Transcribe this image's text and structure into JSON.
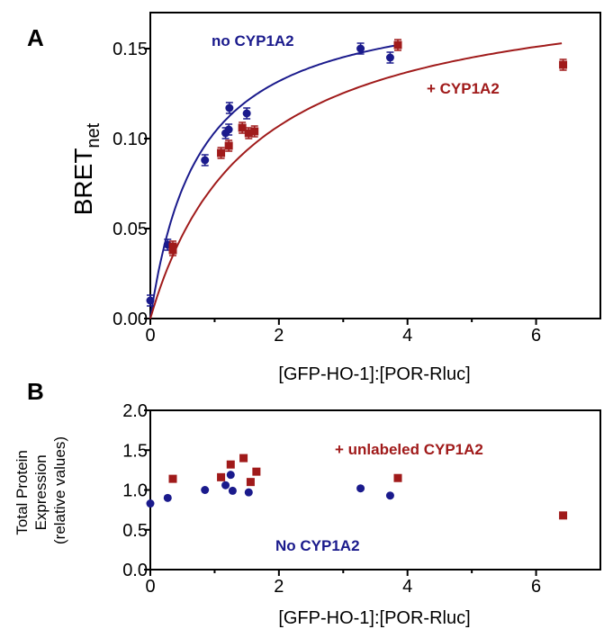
{
  "chart_data": [
    {
      "panel": "A",
      "type": "scatter",
      "xlabel": "[GFP-HO-1]:[POR-Rluc]",
      "ylabel": "BRET",
      "ylabel_sub": "net",
      "xlim": [
        0,
        7
      ],
      "ylim": [
        0,
        0.17
      ],
      "xticks": [
        0,
        2,
        4,
        6
      ],
      "yticks": [
        0.0,
        0.05,
        0.1,
        0.15
      ],
      "ytick_labels": [
        "0.00",
        "0.05",
        "0.10",
        "0.15"
      ],
      "series": [
        {
          "name": "no CYP1A2",
          "color": "#1a1a8c",
          "marker": "circle",
          "points": [
            {
              "x": 0.0,
              "y": 0.01
            },
            {
              "x": 0.27,
              "y": 0.041
            },
            {
              "x": 0.85,
              "y": 0.088
            },
            {
              "x": 1.17,
              "y": 0.103
            },
            {
              "x": 1.22,
              "y": 0.105
            },
            {
              "x": 1.23,
              "y": 0.117
            },
            {
              "x": 1.5,
              "y": 0.114
            },
            {
              "x": 3.27,
              "y": 0.15
            },
            {
              "x": 3.73,
              "y": 0.145
            }
          ],
          "fit": {
            "bmax": 0.182,
            "kd": 0.76,
            "x_range": [
              0,
              3.8
            ]
          }
        },
        {
          "name": "+ CYP1A2",
          "color": "#a01a1a",
          "marker": "square",
          "points": [
            {
              "x": 0.35,
              "y": 0.04
            },
            {
              "x": 0.35,
              "y": 0.038
            },
            {
              "x": 1.1,
              "y": 0.092
            },
            {
              "x": 1.22,
              "y": 0.096
            },
            {
              "x": 1.43,
              "y": 0.106
            },
            {
              "x": 1.53,
              "y": 0.103
            },
            {
              "x": 1.62,
              "y": 0.104
            },
            {
              "x": 3.85,
              "y": 0.152
            },
            {
              "x": 6.42,
              "y": 0.141
            }
          ],
          "fit": {
            "bmax": 0.19,
            "kd": 1.55,
            "x_range": [
              0,
              6.4
            ]
          }
        }
      ]
    },
    {
      "panel": "B",
      "type": "scatter",
      "xlabel": "[GFP-HO-1]:[POR-Rluc]",
      "ylabel_lines": [
        "Total Protein",
        "Expression",
        "(relative values)"
      ],
      "xlim": [
        0,
        7
      ],
      "ylim": [
        0,
        2.0
      ],
      "xticks": [
        0,
        2,
        4,
        6
      ],
      "yticks": [
        0.0,
        0.5,
        1.0,
        1.5,
        2.0
      ],
      "ytick_labels": [
        "0.0",
        "0.5",
        "1.0",
        "1.5",
        "2.0"
      ],
      "series": [
        {
          "name": "No CYP1A2",
          "color": "#1a1a8c",
          "marker": "circle",
          "points": [
            {
              "x": 0.0,
              "y": 0.83
            },
            {
              "x": 0.27,
              "y": 0.9
            },
            {
              "x": 0.85,
              "y": 1.0
            },
            {
              "x": 1.17,
              "y": 1.06
            },
            {
              "x": 1.25,
              "y": 1.19
            },
            {
              "x": 1.28,
              "y": 0.99
            },
            {
              "x": 1.53,
              "y": 0.97
            },
            {
              "x": 3.27,
              "y": 1.02
            },
            {
              "x": 3.73,
              "y": 0.93
            }
          ]
        },
        {
          "name": "+ unlabeled CYP1A2",
          "color": "#a01a1a",
          "marker": "square",
          "points": [
            {
              "x": 0.35,
              "y": 1.14
            },
            {
              "x": 1.1,
              "y": 1.16
            },
            {
              "x": 1.25,
              "y": 1.32
            },
            {
              "x": 1.45,
              "y": 1.4
            },
            {
              "x": 1.56,
              "y": 1.1
            },
            {
              "x": 1.65,
              "y": 1.23
            },
            {
              "x": 3.85,
              "y": 1.15
            },
            {
              "x": 6.42,
              "y": 0.68
            }
          ]
        }
      ]
    }
  ]
}
